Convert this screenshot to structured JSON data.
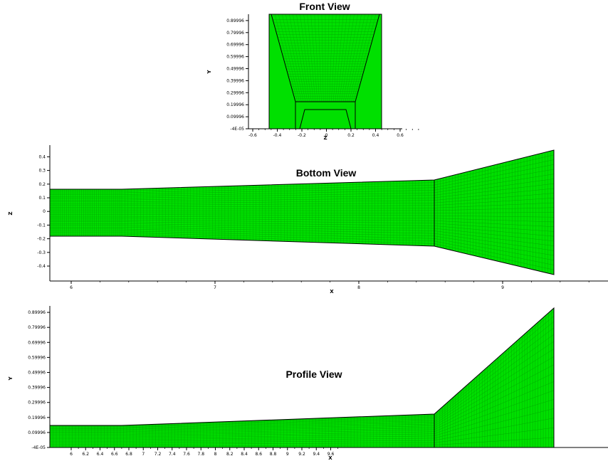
{
  "colors": {
    "mesh": "#00e000",
    "mesh_line": "#00a800",
    "edge": "#000000",
    "background": "#ffffff"
  },
  "panels": [
    {
      "id": "front",
      "title": "Front View",
      "xlabel": "Z",
      "ylabel": "Y",
      "xticks": [
        "-0.6",
        "-0.4",
        "-0.2",
        "0",
        "0.2",
        "0.4",
        "0.6"
      ],
      "yticks": [
        "-4E-05",
        "0.09996",
        "0.19996",
        "0.29996",
        "0.39996",
        "0.49996",
        "0.59996",
        "0.69996",
        "0.79996",
        "0.89996"
      ]
    },
    {
      "id": "bottom",
      "title": "Bottom View",
      "xlabel": "X",
      "ylabel": "Z",
      "xticks": [
        "6",
        "7",
        "8",
        "9"
      ],
      "yticks": [
        "-0.4",
        "-0.3",
        "-0.2",
        "-0.1",
        "0",
        "0.1",
        "0.2",
        "0.3",
        "0.4"
      ]
    },
    {
      "id": "profile",
      "title": "Profile View",
      "xlabel": "X",
      "ylabel": "Y",
      "xticks": [
        "6",
        "6.2",
        "6.4",
        "6.6",
        "6.8",
        "7",
        "7.2",
        "7.4",
        "7.6",
        "7.8",
        "8",
        "8.2",
        "8.4",
        "8.6",
        "8.8",
        "9",
        "9.2",
        "9.4",
        "9.6"
      ],
      "yticks": [
        "-4E-05",
        "0.09996",
        "0.19996",
        "0.29996",
        "0.39996",
        "0.49996",
        "0.59996",
        "0.69996",
        "0.79996",
        "0.89996"
      ]
    }
  ]
}
